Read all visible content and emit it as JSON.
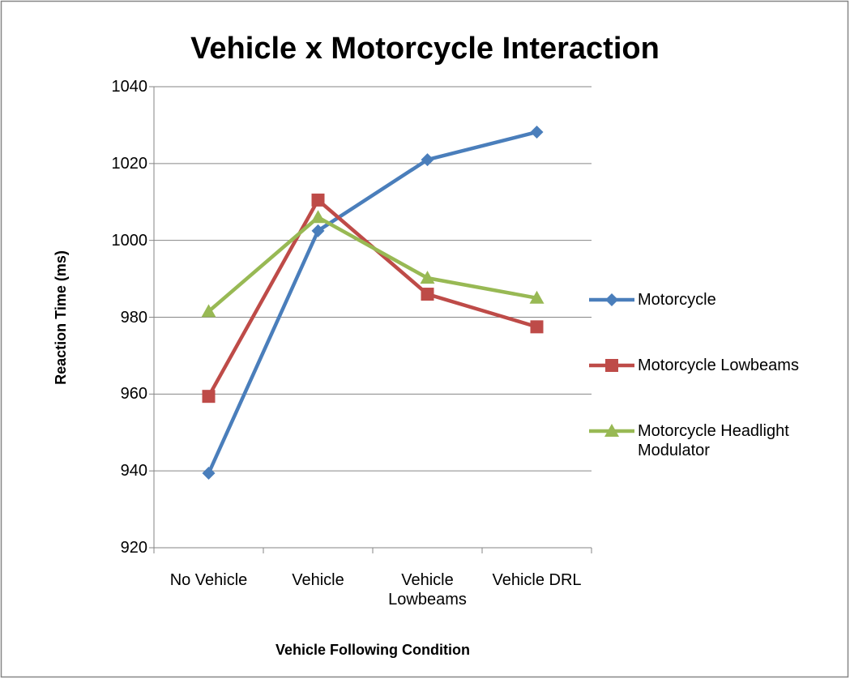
{
  "chart_data": {
    "type": "line",
    "title": "Vehicle x Motorcycle Interaction",
    "x_label": "Vehicle Following Condition",
    "y_label": "Reaction Time (ms)",
    "categories": [
      "No Vehicle",
      "Vehicle",
      "Vehicle Lowbeams",
      "Vehicle DRL"
    ],
    "series": [
      {
        "name": "Motorcycle",
        "color": "#4a7ebb",
        "marker": "diamond",
        "values": [
          939.4,
          1002.5,
          1021,
          1028.2
        ]
      },
      {
        "name": "Motorcycle Lowbeams",
        "color": "#be4b48",
        "marker": "square",
        "values": [
          959.4,
          1010.5,
          986,
          977.5
        ]
      },
      {
        "name": "Motorcycle Headlight Modulator",
        "color": "#98b954",
        "marker": "triangle",
        "values": [
          981.5,
          1006,
          990.2,
          985
        ]
      }
    ],
    "ylim": [
      920,
      1040
    ],
    "yticks": [
      920,
      940,
      960,
      980,
      1000,
      1020,
      1040
    ],
    "grid": true,
    "legend": "right"
  }
}
